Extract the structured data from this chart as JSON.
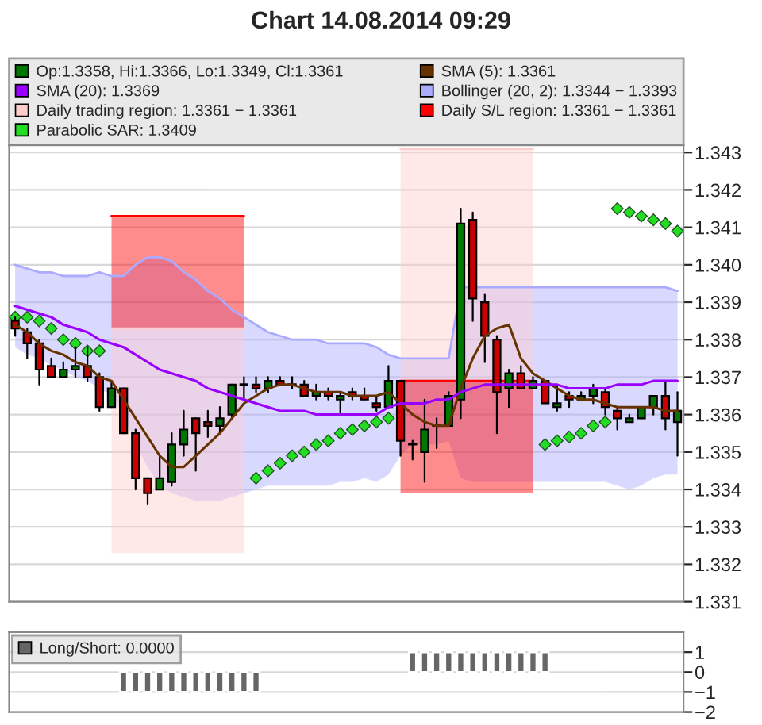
{
  "chart_data": [
    {
      "type": "candlestick",
      "title": "Chart 14.08.2014 09:29",
      "categories": [
        null,
        null,
        null,
        null,
        null,
        null,
        null,
        null,
        null,
        null,
        null,
        null,
        null,
        null,
        null,
        null,
        null,
        null,
        null,
        null,
        null,
        null,
        null,
        null,
        null,
        null,
        null,
        null,
        null,
        null,
        null,
        null,
        null,
        null,
        null,
        null,
        null,
        null,
        null,
        null,
        null,
        null,
        null,
        null,
        null,
        null,
        null,
        null,
        null,
        null,
        null,
        null,
        null,
        null,
        null,
        null
      ],
      "series": [
        {
          "type": "candlestick",
          "name": "Op:1.3358, Hi:1.3366, Lo:1.3349, Cl:1.3361",
          "color": "#007700",
          "colors": [
            "#cc0000",
            "#cc0000",
            "#cc0000",
            "#cc0000",
            "#007700",
            "#007700",
            "#cc0000",
            "#cc0000",
            "#007700",
            "#cc0000",
            "#cc0000",
            "#cc0000",
            "#007700",
            "#007700",
            "#007700",
            "#cc0000",
            "#cc0000",
            "#007700",
            "#007700",
            "#007700",
            "#cc0000",
            "#007700",
            "#cc0000",
            "#007700",
            "#cc0000",
            "#007700",
            "#cc0000",
            "#007700",
            "#cc0000",
            "#cc0000",
            "#cc0000",
            "#007700",
            "#cc0000",
            "#007700",
            "#007700",
            "#007700",
            "#007700",
            "#007700",
            "#cc0000",
            "#cc0000",
            "#cc0000",
            "#007700",
            "#cc0000",
            "#007700",
            "#cc0000",
            "#007700",
            "#cc0000",
            "#007700",
            "#007700",
            "#cc0000",
            "#cc0000",
            "#007700",
            "#007700",
            "#007700",
            "#cc0000",
            "#007700"
          ],
          "ohlc": [
            [
              1.3385,
              1.3386,
              1.3381,
              1.3383
            ],
            [
              1.3382,
              1.3383,
              1.3375,
              1.3379
            ],
            [
              1.3379,
              1.338,
              1.3368,
              1.3372
            ],
            [
              1.3373,
              1.3375,
              1.337,
              1.337
            ],
            [
              1.337,
              1.3374,
              1.337,
              1.3372
            ],
            [
              1.3372,
              1.3378,
              1.337,
              1.3373
            ],
            [
              1.3373,
              1.3378,
              1.3369,
              1.337
            ],
            [
              1.337,
              1.3371,
              1.3361,
              1.3362
            ],
            [
              1.3362,
              1.3369,
              1.3362,
              1.3367
            ],
            [
              1.3367,
              1.3367,
              1.3355,
              1.3355
            ],
            [
              1.3355,
              1.3356,
              1.334,
              1.3343
            ],
            [
              1.3343,
              1.3343,
              1.3336,
              1.3339
            ],
            [
              1.334,
              1.3349,
              1.334,
              1.3343
            ],
            [
              1.3342,
              1.3355,
              1.3341,
              1.3352
            ],
            [
              1.3352,
              1.3361,
              1.3349,
              1.3356
            ],
            [
              1.3359,
              1.3359,
              1.3345,
              1.3355
            ],
            [
              1.3358,
              1.3361,
              1.3354,
              1.3357
            ],
            [
              1.3357,
              1.3362,
              1.3355,
              1.3359
            ],
            [
              1.336,
              1.3368,
              1.3359,
              1.3368
            ],
            [
              1.3368,
              1.337,
              1.3364,
              1.3368
            ],
            [
              1.3368,
              1.337,
              1.3366,
              1.3367
            ],
            [
              1.3367,
              1.337,
              1.3366,
              1.3369
            ],
            [
              1.3369,
              1.337,
              1.3368,
              1.3368
            ],
            [
              1.3368,
              1.337,
              1.3367,
              1.3368
            ],
            [
              1.3368,
              1.3369,
              1.3365,
              1.3365
            ],
            [
              1.3365,
              1.3368,
              1.3364,
              1.3366
            ],
            [
              1.3366,
              1.3367,
              1.3364,
              1.3365
            ],
            [
              1.3364,
              1.3366,
              1.336,
              1.3365
            ],
            [
              1.3366,
              1.3367,
              1.3364,
              1.3365
            ],
            [
              1.3365,
              1.3367,
              1.3364,
              1.3364
            ],
            [
              1.3363,
              1.3365,
              1.3361,
              1.3362
            ],
            [
              1.3362,
              1.3373,
              1.3362,
              1.3369
            ],
            [
              1.3369,
              1.3369,
              1.3349,
              1.3353
            ],
            [
              1.3352,
              1.3353,
              1.3348,
              1.3352
            ],
            [
              1.335,
              1.3364,
              1.3342,
              1.3356
            ],
            [
              1.3357,
              1.3359,
              1.3351,
              1.3357
            ],
            [
              1.3357,
              1.3366,
              1.3357,
              1.3365
            ],
            [
              1.3364,
              1.3415,
              1.3359,
              1.3411
            ],
            [
              1.3412,
              1.3414,
              1.3385,
              1.3391
            ],
            [
              1.339,
              1.3392,
              1.3374,
              1.3381
            ],
            [
              1.338,
              1.3381,
              1.3355,
              1.3366
            ],
            [
              1.3367,
              1.3372,
              1.3362,
              1.3371
            ],
            [
              1.3371,
              1.3373,
              1.3367,
              1.3367
            ],
            [
              1.3367,
              1.337,
              1.3367,
              1.3369
            ],
            [
              1.3369,
              1.3369,
              1.3363,
              1.3363
            ],
            [
              1.3362,
              1.3368,
              1.3361,
              1.3363
            ],
            [
              1.3365,
              1.3366,
              1.3362,
              1.3364
            ],
            [
              1.3364,
              1.3366,
              1.3364,
              1.3365
            ],
            [
              1.3365,
              1.3368,
              1.3363,
              1.3367
            ],
            [
              1.3366,
              1.3367,
              1.336,
              1.3362
            ],
            [
              1.3361,
              1.3362,
              1.3356,
              1.3359
            ],
            [
              1.3358,
              1.336,
              1.3358,
              1.3359
            ],
            [
              1.3359,
              1.3362,
              1.3359,
              1.3362
            ],
            [
              1.3362,
              1.3365,
              1.336,
              1.3365
            ],
            [
              1.3365,
              1.3369,
              1.3356,
              1.3359
            ],
            [
              1.3358,
              1.3366,
              1.3349,
              1.3361
            ]
          ]
        },
        {
          "type": "line",
          "name": "SMA (5): 1.3361",
          "color": "#663300",
          "values": [
            1.3384,
            1.3382,
            1.3379,
            1.3377,
            1.3376,
            1.3374,
            1.3373,
            1.337,
            1.3369,
            1.3364,
            1.3359,
            1.3354,
            1.3349,
            1.3346,
            1.3346,
            1.3349,
            1.3352,
            1.3355,
            1.3359,
            1.3363,
            1.3365,
            1.3367,
            1.3368,
            1.3368,
            1.3367,
            1.3366,
            1.3366,
            1.3366,
            1.3365,
            1.3365,
            1.3365,
            1.3366,
            1.3363,
            1.336,
            1.3358,
            1.3357,
            1.3357,
            1.3367,
            1.3375,
            1.3381,
            1.3383,
            1.3384,
            1.3375,
            1.3371,
            1.3369,
            1.3367,
            1.3365,
            1.3364,
            1.3364,
            1.3363,
            1.3362,
            1.3362,
            1.3362,
            1.3362,
            1.3361,
            1.3361
          ]
        },
        {
          "type": "line",
          "name": "SMA (20): 1.3369",
          "color": "#9900ff",
          "values": [
            1.3389,
            1.3388,
            1.3387,
            1.3386,
            1.3384,
            1.3383,
            1.3382,
            1.338,
            1.3379,
            1.3378,
            1.3376,
            1.3374,
            1.3372,
            1.3371,
            1.337,
            1.3369,
            1.3367,
            1.3366,
            1.3365,
            1.3364,
            1.3363,
            1.3362,
            1.3361,
            1.3361,
            1.3361,
            1.336,
            1.336,
            1.336,
            1.336,
            1.336,
            1.336,
            1.3362,
            1.3363,
            1.3363,
            1.3363,
            1.3364,
            1.3364,
            1.3366,
            1.3367,
            1.3368,
            1.3368,
            1.3368,
            1.3368,
            1.3368,
            1.3368,
            1.3368,
            1.3367,
            1.3367,
            1.3367,
            1.3367,
            1.3368,
            1.3368,
            1.3368,
            1.3369,
            1.3369,
            1.3369
          ]
        },
        {
          "type": "line",
          "name": "Bollinger (20, 2): 1.3344 − 1.3393",
          "color": "#aaaaff",
          "values": [
            1.34,
            1.3399,
            1.3398,
            1.3398,
            1.3397,
            1.3397,
            1.3397,
            1.3398,
            1.3397,
            1.3397,
            1.34,
            1.3402,
            1.3402,
            1.3401,
            1.3398,
            1.3396,
            1.3393,
            1.3391,
            1.3388,
            1.3386,
            1.3384,
            1.3382,
            1.3381,
            1.338,
            1.338,
            1.338,
            1.3379,
            1.3379,
            1.3379,
            1.3379,
            1.3378,
            1.3376,
            1.3375,
            1.3375,
            1.3375,
            1.3375,
            1.3375,
            1.3394,
            1.3394,
            1.3394,
            1.3394,
            1.3394,
            1.3394,
            1.3394,
            1.3394,
            1.3394,
            1.3394,
            1.3394,
            1.3394,
            1.3394,
            1.3394,
            1.3394,
            1.3394,
            1.3394,
            1.3394,
            1.3393
          ],
          "upper": [
            1.34,
            1.3399,
            1.3398,
            1.3398,
            1.3397,
            1.3397,
            1.3397,
            1.3398,
            1.3397,
            1.3397,
            1.34,
            1.3402,
            1.3402,
            1.3401,
            1.3398,
            1.3396,
            1.3393,
            1.3391,
            1.3388,
            1.3386,
            1.3384,
            1.3382,
            1.3381,
            1.338,
            1.338,
            1.338,
            1.3379,
            1.3379,
            1.3379,
            1.3379,
            1.3378,
            1.3376,
            1.3375,
            1.3375,
            1.3375,
            1.3375,
            1.3375,
            1.3394,
            1.3394,
            1.3394,
            1.3394,
            1.3394,
            1.3394,
            1.3394,
            1.3394,
            1.3394,
            1.3394,
            1.3394,
            1.3394,
            1.3394,
            1.3394,
            1.3394,
            1.3394,
            1.3394,
            1.3394,
            1.3393
          ],
          "lower": [
            1.3378,
            1.3376,
            1.3375,
            1.3373,
            1.3372,
            1.337,
            1.3369,
            1.3367,
            1.3365,
            1.336,
            1.3352,
            1.3346,
            1.3341,
            1.3339,
            1.3338,
            1.3337,
            1.3337,
            1.3337,
            1.3338,
            1.3339,
            1.334,
            1.3341,
            1.3341,
            1.3341,
            1.3341,
            1.3341,
            1.3341,
            1.3342,
            1.3342,
            1.3343,
            1.3342,
            1.3344,
            1.3349,
            1.3352,
            1.3352,
            1.3352,
            1.3353,
            1.3343,
            1.3342,
            1.3342,
            1.3342,
            1.3342,
            1.3342,
            1.3342,
            1.3342,
            1.3342,
            1.3342,
            1.3342,
            1.3342,
            1.3342,
            1.3341,
            1.334,
            1.3341,
            1.3343,
            1.3344,
            1.3344
          ]
        },
        {
          "type": "line",
          "name": "Daily trading region: 1.3361 − 1.3361",
          "color": "#ffcccc",
          "values": [
            null,
            null,
            null,
            null,
            null,
            null,
            null,
            null,
            1.3383,
            1.3383,
            1.3383,
            1.3383,
            1.3383,
            1.3383,
            1.3383,
            1.3383,
            1.3383,
            1.3383,
            1.3383,
            1.3383,
            null,
            null,
            null,
            null,
            null,
            null,
            null,
            null,
            null,
            null,
            null,
            null,
            1.3431,
            1.3431,
            1.3431,
            1.3431,
            1.3431,
            1.3431,
            1.3431,
            1.3431,
            1.3431,
            1.3431,
            1.3431,
            1.3431,
            null,
            null,
            null,
            null,
            null,
            null,
            null,
            null,
            null,
            null,
            null,
            null
          ],
          "upper": [
            null,
            null,
            null,
            null,
            null,
            null,
            null,
            null,
            1.3383,
            1.3383,
            1.3383,
            1.3383,
            1.3383,
            1.3383,
            1.3383,
            1.3383,
            1.3383,
            1.3383,
            1.3383,
            1.3383,
            null,
            null,
            null,
            null,
            null,
            null,
            null,
            null,
            null,
            null,
            null,
            null,
            1.3431,
            1.3431,
            1.3431,
            1.3431,
            1.3431,
            1.3431,
            1.3431,
            1.3431,
            1.3431,
            1.3431,
            1.3431,
            1.3431,
            null,
            null,
            null,
            null,
            null,
            null,
            null,
            null,
            null,
            null,
            null,
            null
          ],
          "lower": [
            null,
            null,
            null,
            null,
            null,
            null,
            null,
            null,
            1.3323,
            1.3323,
            1.3323,
            1.3323,
            1.3323,
            1.3323,
            1.3323,
            1.3323,
            1.3323,
            1.3323,
            1.3323,
            1.3323,
            null,
            null,
            null,
            null,
            null,
            null,
            null,
            null,
            null,
            null,
            null,
            null,
            1.3369,
            1.3369,
            1.3369,
            1.3369,
            1.3369,
            1.3369,
            1.3369,
            1.3369,
            1.3369,
            1.3369,
            1.3369,
            1.3369,
            null,
            null,
            null,
            null,
            null,
            null,
            null,
            null,
            null,
            null,
            null,
            null
          ]
        },
        {
          "type": "line",
          "name": "Daily S/L region: 1.3361 − 1.3361",
          "color": "#ff0000",
          "values": [
            null,
            null,
            null,
            null,
            null,
            null,
            null,
            null,
            1.3413,
            1.3413,
            1.3413,
            1.3413,
            1.3413,
            1.3413,
            1.3413,
            1.3413,
            1.3413,
            1.3413,
            1.3413,
            1.3413,
            null,
            null,
            null,
            null,
            null,
            null,
            null,
            null,
            null,
            null,
            null,
            null,
            1.3369,
            1.3369,
            1.3369,
            1.3369,
            1.3369,
            1.3369,
            1.3369,
            1.3369,
            1.3369,
            1.3369,
            1.3369,
            1.3369,
            null,
            null,
            null,
            null,
            null,
            null,
            null,
            null,
            null,
            null,
            null,
            null
          ],
          "upper": [
            null,
            null,
            null,
            null,
            null,
            null,
            null,
            null,
            1.3413,
            1.3413,
            1.3413,
            1.3413,
            1.3413,
            1.3413,
            1.3413,
            1.3413,
            1.3413,
            1.3413,
            1.3413,
            1.3413,
            null,
            null,
            null,
            null,
            null,
            null,
            null,
            null,
            null,
            null,
            null,
            null,
            1.3369,
            1.3369,
            1.3369,
            1.3369,
            1.3369,
            1.3369,
            1.3369,
            1.3369,
            1.3369,
            1.3369,
            1.3369,
            1.3369,
            null,
            null,
            null,
            null,
            null,
            null,
            null,
            null,
            null,
            null,
            null,
            null
          ],
          "lower": [
            null,
            null,
            null,
            null,
            null,
            null,
            null,
            null,
            1.3383,
            1.3383,
            1.3383,
            1.3383,
            1.3383,
            1.3383,
            1.3383,
            1.3383,
            1.3383,
            1.3383,
            1.3383,
            1.3383,
            null,
            null,
            null,
            null,
            null,
            null,
            null,
            null,
            null,
            null,
            null,
            null,
            1.3339,
            1.3339,
            1.3339,
            1.3339,
            1.3339,
            1.3339,
            1.3339,
            1.3339,
            1.3339,
            1.3339,
            1.3339,
            1.3339,
            null,
            null,
            null,
            null,
            null,
            null,
            null,
            null,
            null,
            null,
            null,
            null
          ]
        },
        {
          "type": "scatter",
          "name": "Parabolic SAR: 1.3409",
          "color": "#22dd22",
          "marker": "diamond",
          "values": [
            1.3386,
            1.3386,
            1.3385,
            1.3383,
            1.338,
            1.3379,
            1.3377,
            1.3377,
            null,
            null,
            null,
            null,
            null,
            null,
            null,
            null,
            null,
            null,
            null,
            null,
            1.3343,
            1.3345,
            1.3347,
            1.3349,
            1.335,
            1.3352,
            1.3353,
            1.3355,
            1.3356,
            1.3357,
            1.3358,
            1.3359,
            null,
            null,
            null,
            null,
            null,
            null,
            null,
            null,
            null,
            null,
            null,
            null,
            1.3352,
            1.3353,
            1.3354,
            1.3355,
            1.3357,
            1.3358,
            1.3415,
            1.3414,
            1.3413,
            1.3412,
            1.3411,
            1.3409
          ]
        }
      ],
      "ylim": [
        1.331,
        1.3432
      ],
      "yticks": [
        1.331,
        1.332,
        1.333,
        1.334,
        1.335,
        1.336,
        1.337,
        1.338,
        1.339,
        {
          "value": 1.34,
          "label": "1.340"
        },
        1.341,
        1.342,
        1.343
      ],
      "grid": "y",
      "legend": "top",
      "tick_labels": "y"
    },
    {
      "type": "bar",
      "categories": [
        null,
        null,
        null,
        null,
        null,
        null,
        null,
        null,
        null,
        null,
        null,
        null,
        null,
        null,
        null,
        null,
        null,
        null,
        null,
        null,
        null,
        null,
        null,
        null,
        null,
        null,
        null,
        null,
        null,
        null,
        null,
        null,
        null,
        null,
        null,
        null,
        null,
        null,
        null,
        null,
        null,
        null,
        null,
        null,
        null,
        null,
        null,
        null,
        null,
        null,
        null,
        null,
        null,
        null,
        null,
        null
      ],
      "series": [
        {
          "name": "Long/Short: 0.0000",
          "color": "#666666",
          "values": [
            null,
            null,
            null,
            null,
            null,
            null,
            null,
            null,
            null,
            -1,
            -1,
            -1,
            -1,
            -1,
            -1,
            -1,
            -1,
            -1,
            -1,
            -1,
            -1,
            null,
            null,
            null,
            null,
            null,
            null,
            null,
            null,
            null,
            null,
            null,
            null,
            1,
            1,
            1,
            1,
            1,
            1,
            1,
            1,
            1,
            1,
            1,
            1,
            null,
            null,
            null,
            null,
            null,
            null,
            null,
            null,
            null,
            null,
            null
          ]
        }
      ],
      "ylim": [
        -2,
        2
      ],
      "yticks": [
        1,
        0,
        {
          "value": -1,
          "label": "−1"
        },
        {
          "value": -2,
          "label": "−2"
        }
      ],
      "grid": "y",
      "legend": "top left",
      "tick_labels": "y"
    }
  ]
}
